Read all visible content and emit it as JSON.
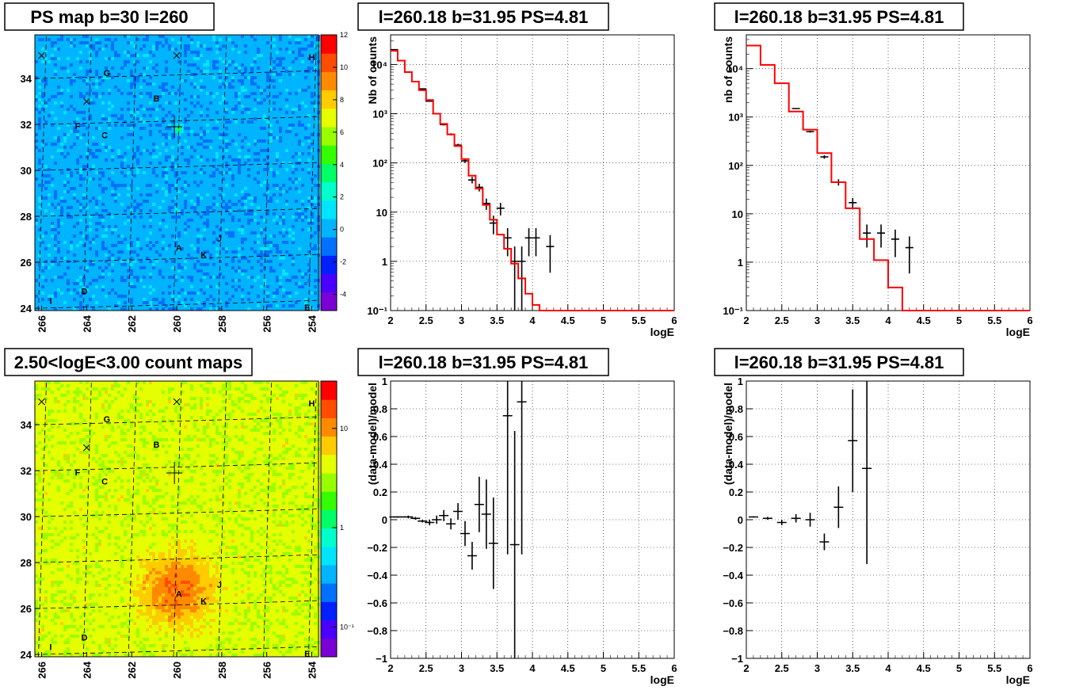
{
  "chart_data": [
    {
      "type": "heatmap",
      "title": "PS map b=30 l=260",
      "x_ticks": [
        266,
        264,
        262,
        260,
        258,
        256,
        254
      ],
      "y_ticks": [
        24,
        26,
        28,
        30,
        32,
        34
      ],
      "xlim": [
        266.3,
        253.7
      ],
      "ylim": [
        23.9,
        35.9
      ],
      "colorbar_ticks": [
        -4,
        -2,
        0,
        2,
        4,
        6,
        8,
        10,
        12
      ],
      "colorbar_range": [
        -5,
        12
      ],
      "colormap": "rainbow",
      "background_level": 0,
      "source_labels": [
        "A",
        "B",
        "C",
        "D",
        "E",
        "F",
        "G",
        "H",
        "I",
        "J",
        "K"
      ],
      "peak": {
        "l": 259.9,
        "b": 31.8
      },
      "x_markers": [
        {
          "l": 266,
          "b": 35
        },
        {
          "l": 260,
          "b": 35
        },
        {
          "l": 264,
          "b": 33
        }
      ]
    },
    {
      "type": "line",
      "title": "l=260.18 b=31.95 PS=4.81",
      "xlabel": "logE",
      "ylabel": "Nb of counts",
      "xlim": [
        2,
        6
      ],
      "ylim": [
        0.1,
        40000
      ],
      "yscale": "log",
      "x_ticks": [
        "2",
        "2.5",
        "3",
        "3.5",
        "4",
        "4.5",
        "5",
        "5.5",
        "6"
      ],
      "y_ticks": [
        "10⁻¹",
        "1",
        "10",
        "10²",
        "10³",
        "10⁴"
      ],
      "grid": true,
      "series": [
        {
          "kind": "points",
          "color": "#000000",
          "x": [
            2.05,
            2.15,
            2.25,
            2.35,
            2.45,
            2.55,
            2.65,
            2.75,
            2.85,
            2.95,
            3.05,
            3.15,
            3.25,
            3.35,
            3.45,
            3.55,
            3.65,
            3.75,
            3.85,
            3.95,
            4.05,
            4.25
          ],
          "y": [
            20000,
            12000,
            7000,
            4500,
            3200,
            1800,
            1000,
            600,
            380,
            230,
            110,
            45,
            32,
            15,
            6,
            12,
            3,
            1,
            1,
            3,
            3,
            2
          ],
          "yerr_lo": [
            20000,
            12000,
            7000,
            4500,
            3200,
            1800,
            1000,
            600,
            380,
            230,
            110,
            45,
            32,
            15,
            6,
            12,
            3,
            1,
            1,
            3,
            3,
            2
          ],
          "yerr_hi": [
            20000,
            12000,
            7000,
            4500,
            3200,
            1800,
            1000,
            600,
            380,
            230,
            110,
            45,
            32,
            15,
            6,
            12,
            3,
            1,
            1,
            3,
            3,
            2
          ]
        },
        {
          "kind": "step",
          "color": "#ff0000",
          "x": [
            2.0,
            2.1,
            2.2,
            2.3,
            2.4,
            2.5,
            2.6,
            2.7,
            2.8,
            2.9,
            3.0,
            3.1,
            3.2,
            3.3,
            3.4,
            3.5,
            3.6,
            3.7,
            3.8,
            3.9,
            4.0,
            4.1,
            4.2,
            4.3
          ],
          "y": [
            19000,
            12000,
            7000,
            4500,
            3000,
            1900,
            1000,
            620,
            380,
            220,
            120,
            55,
            30,
            14,
            7,
            3.5,
            1.8,
            0.9,
            0.45,
            0.22,
            0.13,
            0.1,
            0.1,
            0.1
          ]
        }
      ]
    },
    {
      "type": "line",
      "title": "l=260.18 b=31.95 PS=4.81",
      "xlabel": "logE",
      "ylabel": "nb of counts",
      "xlim": [
        2,
        6
      ],
      "ylim": [
        0.1,
        50000
      ],
      "yscale": "log",
      "x_ticks": [
        "2",
        "2.5",
        "3",
        "3.5",
        "4",
        "4.5",
        "5",
        "5.5",
        "6"
      ],
      "y_ticks": [
        "10⁻¹",
        "1",
        "10",
        "10²",
        "10³",
        "10⁴"
      ],
      "grid": true,
      "series": [
        {
          "kind": "points",
          "color": "#000000",
          "x": [
            2.1,
            2.3,
            2.5,
            2.7,
            2.9,
            3.1,
            3.3,
            3.5,
            3.7,
            3.9,
            4.1,
            4.3
          ],
          "y": [
            30000,
            12000,
            5000,
            1500,
            500,
            150,
            45,
            17,
            4,
            4,
            3,
            2
          ],
          "yerr_lo": [
            30000,
            12000,
            5000,
            1500,
            500,
            150,
            45,
            17,
            4,
            4,
            3,
            2
          ],
          "yerr_hi": [
            30000,
            12000,
            5000,
            1500,
            500,
            150,
            45,
            17,
            4,
            4,
            3,
            2
          ]
        },
        {
          "kind": "step",
          "color": "#ff0000",
          "x": [
            2.0,
            2.2,
            2.4,
            2.6,
            2.8,
            3.0,
            3.2,
            3.4,
            3.6,
            3.8,
            4.0,
            4.2
          ],
          "y": [
            30000,
            12000,
            5000,
            1300,
            550,
            180,
            45,
            13,
            3,
            1.1,
            0.3,
            0.1
          ]
        }
      ]
    },
    {
      "type": "heatmap",
      "title": "2.50<logE<3.00 count maps",
      "x_ticks": [
        266,
        264,
        262,
        260,
        258,
        256,
        254
      ],
      "y_ticks": [
        24,
        26,
        28,
        30,
        32,
        34
      ],
      "xlim": [
        266.3,
        253.7
      ],
      "ylim": [
        23.9,
        35.9
      ],
      "colorbar_ticks": [
        "10⁻¹",
        "1",
        "10"
      ],
      "colorbar_range_log": [
        0.05,
        30
      ],
      "colormap": "rainbow-log",
      "background_level": 4,
      "source_labels": [
        "A",
        "B",
        "C",
        "D",
        "E",
        "F",
        "G",
        "H",
        "I",
        "J",
        "K"
      ],
      "peak": {
        "l": 260,
        "b": 26.8
      },
      "x_markers": [
        {
          "l": 266,
          "b": 35
        },
        {
          "l": 260,
          "b": 35
        },
        {
          "l": 264,
          "b": 33
        }
      ]
    },
    {
      "type": "scatter",
      "title": "l=260.18 b=31.95 PS=4.81",
      "xlabel": "logE",
      "ylabel": "(data-model)/model",
      "xlim": [
        2,
        6
      ],
      "ylim": [
        -1,
        1
      ],
      "x_ticks": [
        "2",
        "2.5",
        "3",
        "3.5",
        "4",
        "4.5",
        "5",
        "5.5",
        "6"
      ],
      "y_ticks": [
        "−1",
        "−0.8",
        "−0.6",
        "−0.4",
        "−0.2",
        "0",
        "0.2",
        "0.4",
        "0.6",
        "0.8",
        "1"
      ],
      "grid": true,
      "series": [
        {
          "kind": "points",
          "color": "#000000",
          "x": [
            2.05,
            2.15,
            2.25,
            2.35,
            2.45,
            2.55,
            2.65,
            2.75,
            2.85,
            2.95,
            3.05,
            3.15,
            3.25,
            3.35,
            3.45,
            3.65,
            3.75,
            3.85
          ],
          "y": [
            0.02,
            0.02,
            0.02,
            0.01,
            -0.01,
            -0.02,
            0.0,
            0.03,
            -0.03,
            0.06,
            -0.1,
            -0.26,
            0.11,
            0.04,
            -0.17,
            0.75,
            -0.18,
            0.85
          ],
          "yerr_lo": [
            0.005,
            0.005,
            0.01,
            0.01,
            0.01,
            0.02,
            0.03,
            0.04,
            0.04,
            0.06,
            0.09,
            0.1,
            0.2,
            0.25,
            0.33,
            1.0,
            0.82,
            1.1
          ],
          "yerr_hi": [
            0.005,
            0.005,
            0.01,
            0.01,
            0.01,
            0.02,
            0.03,
            0.04,
            0.04,
            0.06,
            0.09,
            0.1,
            0.2,
            0.25,
            0.33,
            0.4,
            0.82,
            0.4
          ]
        }
      ]
    },
    {
      "type": "scatter",
      "title": "l=260.18 b=31.95 PS=4.81",
      "xlabel": "logE",
      "ylabel": "(data-model)/model",
      "xlim": [
        2,
        6
      ],
      "ylim": [
        -1,
        1
      ],
      "x_ticks": [
        "2",
        "2.5",
        "3",
        "3.5",
        "4",
        "4.5",
        "5",
        "5.5",
        "6"
      ],
      "y_ticks": [
        "−1",
        "−0.8",
        "−0.6",
        "−0.4",
        "−0.2",
        "0",
        "0.2",
        "0.4",
        "0.6",
        "0.8",
        "1"
      ],
      "grid": true,
      "series": [
        {
          "kind": "points",
          "color": "#000000",
          "x": [
            2.1,
            2.3,
            2.5,
            2.7,
            2.9,
            3.1,
            3.3,
            3.5,
            3.7
          ],
          "y": [
            0.02,
            0.01,
            -0.02,
            0.01,
            0.0,
            -0.16,
            0.09,
            0.57,
            0.37
          ],
          "yerr_lo": [
            0.005,
            0.01,
            0.02,
            0.03,
            0.05,
            0.06,
            0.15,
            0.37,
            0.69
          ],
          "yerr_hi": [
            0.005,
            0.01,
            0.02,
            0.03,
            0.05,
            0.06,
            0.15,
            0.37,
            0.69
          ]
        }
      ]
    }
  ]
}
